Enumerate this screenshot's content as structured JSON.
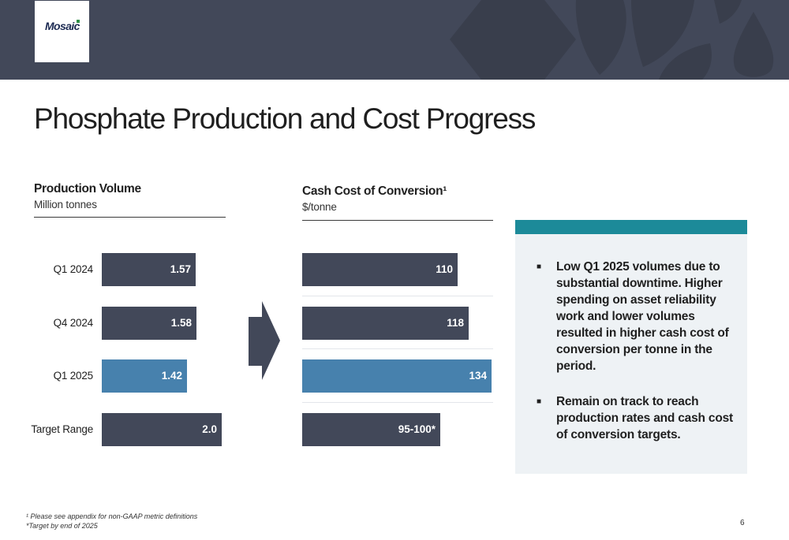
{
  "header": {
    "logo": "Mosaic"
  },
  "title": "Phosphate Production and Cost Progress",
  "chart_data": [
    {
      "type": "bar",
      "orientation": "horizontal",
      "title": "Production Volume",
      "subtitle": "Million tonnes",
      "categories": [
        "Q1 2024",
        "Q4 2024",
        "Q1 2025",
        "Target Range"
      ],
      "values": [
        1.57,
        1.58,
        1.42,
        2.0
      ],
      "labels": [
        "1.57",
        "1.58",
        "1.42",
        "2.0"
      ],
      "colors": [
        "#424859",
        "#424859",
        "#4781ad",
        "#424859"
      ],
      "xlim": [
        0,
        2.0
      ],
      "grid": false,
      "legend": "none"
    },
    {
      "type": "bar",
      "orientation": "horizontal",
      "title": "Cash Cost of Conversion¹",
      "subtitle": "$/tonne",
      "categories": [
        "Q1 2024",
        "Q4 2024",
        "Q1 2025",
        "Target Range"
      ],
      "values": [
        110,
        118,
        134,
        97.5
      ],
      "labels": [
        "110",
        "118",
        "134",
        "95-100*"
      ],
      "colors": [
        "#424859",
        "#424859",
        "#4781ad",
        "#424859"
      ],
      "xlim": [
        0,
        134
      ],
      "grid": true,
      "legend": "none"
    }
  ],
  "panel": {
    "accent_color": "#1c8a99",
    "bullets": [
      "Low Q1 2025 volumes due to substantial downtime. Higher spending on asset reliability work and lower volumes resulted in higher cash cost of conversion per tonne in the period.",
      "Remain on track to reach production rates and cash cost of conversion targets."
    ]
  },
  "footnotes": [
    "¹ Please see appendix for non-GAAP metric definitions",
    "*Target by end of 2025"
  ],
  "page_number": "6"
}
